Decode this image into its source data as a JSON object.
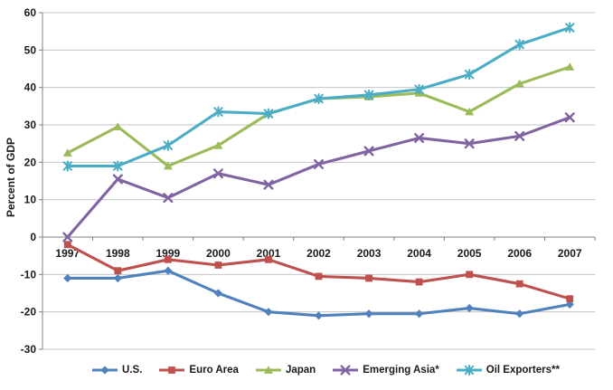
{
  "chart_data": {
    "type": "line",
    "title": "",
    "xlabel": "",
    "ylabel": "Percent of GDP",
    "ylim": [
      -30,
      60
    ],
    "ytick_step": 10,
    "yticks": [
      60,
      50,
      40,
      30,
      20,
      10,
      0,
      -10,
      -20,
      -30
    ],
    "grid": true,
    "legend_position": "bottom",
    "categories": [
      "1997",
      "1998",
      "1999",
      "2000",
      "2001",
      "2002",
      "2003",
      "2004",
      "2005",
      "2006",
      "2007"
    ],
    "series": [
      {
        "name": "U.S.",
        "color": "#4F81BD",
        "marker": "diamond",
        "values": [
          -11,
          -11,
          -9,
          -15,
          -20,
          -21,
          -20.5,
          -20.5,
          -19,
          -20.5,
          -18
        ]
      },
      {
        "name": "Euro Area",
        "color": "#C0504D",
        "marker": "square",
        "values": [
          -2,
          -9,
          -6,
          -7.5,
          -6,
          -10.5,
          -11,
          -12,
          -10,
          -12.5,
          -16.5
        ]
      },
      {
        "name": "Japan",
        "color": "#9BBB59",
        "marker": "triangle",
        "values": [
          22.5,
          29.5,
          19,
          24.5,
          33,
          37,
          37.5,
          38.5,
          33.5,
          41,
          45.5
        ]
      },
      {
        "name": "Emerging Asia*",
        "color": "#8064A2",
        "marker": "x",
        "values": [
          0,
          15.5,
          10.5,
          17,
          14,
          19.5,
          23,
          26.5,
          25,
          27,
          32
        ]
      },
      {
        "name": "Oil Exporters**",
        "color": "#4BACC6",
        "marker": "asterisk",
        "values": [
          19,
          19,
          24.5,
          33.5,
          33,
          37,
          38,
          39.5,
          43.5,
          51.5,
          56
        ]
      }
    ],
    "style": {
      "grid_color": "#c4c4c4",
      "axis_color": "#808080",
      "text_color": "#1a1a1a",
      "background": "#ffffff"
    }
  }
}
